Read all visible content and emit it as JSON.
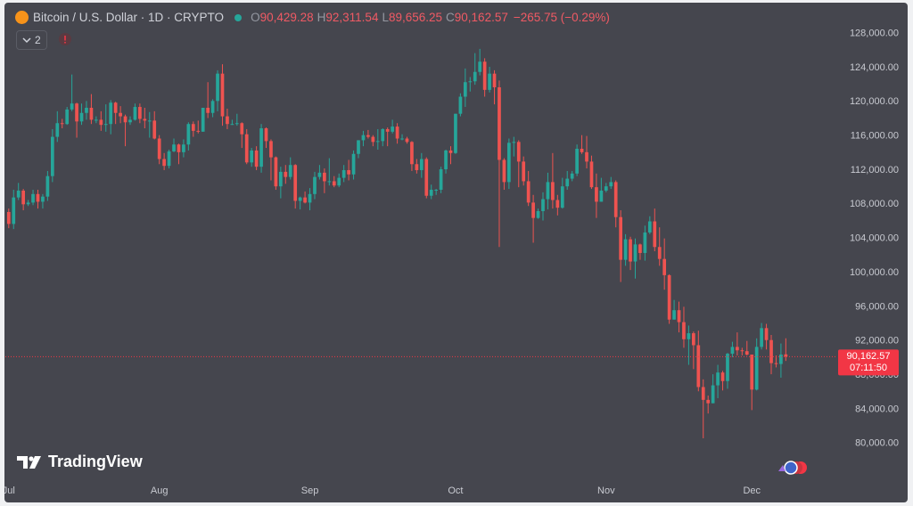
{
  "header": {
    "symbol": "Bitcoin / U.S. Dollar · 1D · CRYPTO",
    "ohlc": [
      {
        "key": "O",
        "value": "90,429.28"
      },
      {
        "key": "H",
        "value": "92,311.54"
      },
      {
        "key": "L",
        "value": "89,656.25"
      },
      {
        "key": "C",
        "value": "90,162.57"
      }
    ],
    "change": "−265.75 (−0.29%)",
    "indicators": "2"
  },
  "watermark": "TradingView",
  "chart_data": {
    "type": "candlestick",
    "x": [
      0,
      1,
      2,
      3,
      4,
      5,
      6,
      7,
      8,
      9,
      10,
      11,
      12,
      13,
      14,
      15,
      16,
      17,
      18,
      19,
      20,
      21,
      22,
      23,
      24,
      25,
      26,
      27,
      28,
      29,
      30,
      31,
      32,
      33,
      34,
      35,
      36,
      37,
      38,
      39,
      40,
      41,
      42,
      43,
      44,
      45,
      46,
      47,
      48,
      49,
      50,
      51,
      52,
      53,
      54,
      55,
      56,
      57,
      58,
      59,
      60,
      61,
      62,
      63,
      64,
      65,
      66,
      67,
      68,
      69,
      70,
      71,
      72,
      73,
      74,
      75,
      76,
      77,
      78,
      79,
      80,
      81,
      82,
      83,
      84,
      85,
      86,
      87,
      88,
      89,
      90,
      91,
      92,
      93,
      94,
      95,
      96,
      97,
      98,
      99,
      100,
      101,
      102,
      103,
      104,
      105,
      106,
      107,
      108,
      109,
      110,
      111,
      112,
      113,
      114,
      115,
      116,
      117,
      118,
      119,
      120,
      121,
      122,
      123,
      124,
      125,
      126,
      127,
      128,
      129,
      130,
      131,
      132,
      133,
      134,
      135,
      136,
      137,
      138,
      139,
      140,
      141,
      142,
      143,
      144,
      145,
      146,
      147,
      148,
      149,
      150,
      151,
      152,
      153,
      154,
      155,
      156,
      157,
      158,
      159,
      160
    ],
    "open": [
      107100,
      105700,
      108800,
      109600,
      108000,
      108200,
      109200,
      108300,
      108900,
      111300,
      115900,
      117500,
      117400,
      119100,
      119800,
      117700,
      118700,
      119300,
      117900,
      117900,
      117300,
      117400,
      119900,
      118700,
      118300,
      117600,
      117900,
      119400,
      118000,
      117800,
      117800,
      115700,
      113300,
      112500,
      114200,
      115000,
      114100,
      115000,
      117400,
      116600,
      116500,
      119300,
      118700,
      120100,
      123300,
      118300,
      117400,
      117400,
      117500,
      116200,
      112900,
      114300,
      112400,
      116900,
      115400,
      113500,
      110100,
      111800,
      111200,
      112600,
      108400,
      108800,
      108200,
      109200,
      111200,
      111700,
      110700,
      110700,
      110200,
      111100,
      112000,
      111500,
      113900,
      115500,
      116100,
      115900,
      115300,
      115400,
      116800,
      116500,
      117100,
      115700,
      115700,
      115300,
      112700,
      112000,
      113300,
      109000,
      109700,
      109700,
      112100,
      114300,
      114000,
      118600,
      120600,
      122300,
      122400,
      123500,
      124700,
      121400,
      123300,
      121700,
      113200,
      110600,
      115200,
      115300,
      113000,
      110700,
      108200,
      106400,
      107200,
      108600,
      110600,
      108500,
      107600,
      110100,
      111000,
      111600,
      114500,
      114100,
      113000,
      110000,
      108300,
      109600,
      110100,
      110600,
      106500,
      101500,
      103900,
      101300,
      103300,
      102300,
      104700,
      106000,
      103000,
      101600,
      99700,
      94500,
      95600,
      94200,
      92200,
      92900,
      91500,
      86600,
      85100,
      84700,
      86800,
      88300,
      87300,
      90500,
      91300,
      90900,
      90800,
      90400,
      86300,
      91300,
      93500,
      92100,
      89400,
      89300,
      90429.28
    ],
    "high": [
      107500,
      109700,
      110500,
      109800,
      108500,
      109700,
      109700,
      109200,
      111900,
      116800,
      118900,
      118000,
      119400,
      123200,
      119900,
      119800,
      120100,
      120900,
      118300,
      118900,
      119700,
      120200,
      120000,
      119500,
      118500,
      118300,
      119800,
      119800,
      119300,
      118800,
      118900,
      116100,
      114000,
      114400,
      115700,
      115100,
      115600,
      117600,
      117700,
      117800,
      119300,
      122300,
      120300,
      123700,
      124400,
      119200,
      117900,
      118600,
      117600,
      116800,
      114600,
      114800,
      117400,
      117000,
      115600,
      113600,
      112400,
      112600,
      113500,
      112700,
      108900,
      109500,
      109900,
      111800,
      112600,
      112200,
      113400,
      111300,
      111600,
      112600,
      113200,
      114300,
      115500,
      116600,
      116700,
      116100,
      116800,
      116900,
      117000,
      117900,
      117500,
      116200,
      115900,
      115400,
      113300,
      114000,
      113500,
      110300,
      109800,
      112400,
      114400,
      114800,
      118600,
      121000,
      123900,
      122900,
      125700,
      126200,
      125100,
      124100,
      123700,
      122500,
      113400,
      115700,
      115900,
      115500,
      113600,
      111900,
      109100,
      107500,
      109400,
      111700,
      114000,
      109100,
      111100,
      111900,
      111900,
      115000,
      116100,
      116000,
      113700,
      111600,
      111100,
      110500,
      111200,
      110800,
      107300,
      104500,
      104200,
      104000,
      103400,
      105500,
      106600,
      107500,
      105300,
      104000,
      99800,
      96800,
      96600,
      96000,
      93800,
      93100,
      93200,
      87500,
      85600,
      88100,
      89200,
      88500,
      90600,
      91900,
      93000,
      91200,
      92000,
      90400,
      92300,
      94100,
      94000,
      92700,
      90300,
      91700,
      92311.54
    ],
    "low": [
      105200,
      105100,
      108500,
      107300,
      107800,
      107900,
      107500,
      107500,
      108400,
      110600,
      115300,
      116900,
      117300,
      118900,
      115800,
      117300,
      117900,
      117400,
      117500,
      116600,
      116500,
      116200,
      117400,
      117500,
      114800,
      117300,
      117800,
      117500,
      116900,
      115800,
      115600,
      112700,
      112000,
      112200,
      114100,
      112700,
      113500,
      114300,
      115900,
      116300,
      116500,
      118100,
      118200,
      118900,
      117200,
      116800,
      117300,
      117200,
      114600,
      112700,
      112400,
      112000,
      111700,
      114600,
      110800,
      109700,
      108700,
      110400,
      110900,
      107500,
      107400,
      108100,
      107300,
      108600,
      110900,
      109300,
      110200,
      110000,
      110000,
      110600,
      110800,
      110900,
      113400,
      114800,
      115700,
      114800,
      114400,
      114800,
      114800,
      116300,
      115100,
      115500,
      115100,
      111900,
      111600,
      111100,
      108700,
      108600,
      109100,
      109300,
      111600,
      112700,
      113900,
      118300,
      119400,
      121200,
      122000,
      123100,
      120600,
      121100,
      119700,
      103000,
      109700,
      109800,
      113600,
      110000,
      110200,
      107800,
      103500,
      106300,
      106100,
      107400,
      107500,
      106700,
      107500,
      109700,
      110700,
      111300,
      113900,
      112200,
      109800,
      106400,
      108300,
      109400,
      109800,
      105300,
      98900,
      100800,
      100300,
      99300,
      101500,
      101400,
      104500,
      102500,
      100800,
      98000,
      94000,
      94500,
      93000,
      91200,
      89200,
      88700,
      86100,
      80600,
      83500,
      84700,
      85300,
      86200,
      86400,
      90100,
      90300,
      90300,
      90300,
      83900,
      86200,
      91000,
      91000,
      88100,
      88900,
      87700,
      89656.25
    ],
    "close": [
      105700,
      108800,
      109600,
      108000,
      108200,
      109200,
      108300,
      108900,
      111300,
      115900,
      117500,
      117400,
      119100,
      119800,
      117700,
      118700,
      119300,
      117900,
      117900,
      117300,
      117400,
      119900,
      118700,
      118300,
      117600,
      117900,
      119400,
      118000,
      117800,
      117800,
      115700,
      113300,
      112500,
      114200,
      115000,
      114100,
      115000,
      117400,
      116600,
      116500,
      119300,
      118700,
      120100,
      123300,
      118300,
      117400,
      117400,
      117500,
      116200,
      112900,
      114300,
      112400,
      116900,
      115400,
      113500,
      110100,
      111800,
      111200,
      112600,
      108400,
      108800,
      108200,
      109200,
      111200,
      111700,
      110700,
      110700,
      110200,
      111100,
      112000,
      111500,
      113900,
      115500,
      116100,
      115900,
      115300,
      115400,
      116800,
      116500,
      117100,
      115700,
      115700,
      115300,
      112700,
      112000,
      113300,
      109000,
      109700,
      109700,
      112100,
      114300,
      114000,
      118600,
      120600,
      122300,
      122400,
      123500,
      124700,
      121400,
      123300,
      121700,
      113200,
      110600,
      115200,
      115300,
      113000,
      110700,
      108200,
      106400,
      107200,
      108600,
      110600,
      108500,
      107600,
      110100,
      111000,
      111600,
      114500,
      114100,
      113000,
      110000,
      108300,
      109600,
      110100,
      110600,
      106500,
      101500,
      103900,
      101300,
      103300,
      102300,
      104700,
      106000,
      103000,
      101600,
      99700,
      94500,
      95600,
      94200,
      92200,
      92900,
      91500,
      86600,
      85100,
      84700,
      86800,
      88300,
      87300,
      90500,
      91300,
      90900,
      90800,
      90400,
      86300,
      91300,
      93500,
      92100,
      89400,
      89300,
      90400,
      90162.57
    ],
    "up_color": "#26a69a",
    "down_color": "#ef5350",
    "last_price": {
      "value": 90162.57,
      "label": "90,162.57"
    },
    "countdown": "07:11:50",
    "last_price_color": "#f23645",
    "xlim": [
      -0.7,
      170.4
    ],
    "xticks": [
      {
        "value": 0,
        "label": "Jul"
      },
      {
        "value": 31,
        "label": "Aug"
      },
      {
        "value": 62,
        "label": "Sep"
      },
      {
        "value": 92,
        "label": "Oct"
      },
      {
        "value": 123,
        "label": "Nov"
      },
      {
        "value": 153,
        "label": "Dec"
      }
    ],
    "ylim": [
      75800,
      131400
    ],
    "yticks": [
      {
        "value": 80000,
        "label": "80,000.00"
      },
      {
        "value": 84000,
        "label": "84,000.00"
      },
      {
        "value": 88000,
        "label": "88,000.00"
      },
      {
        "value": 92000,
        "label": "92,000.00"
      },
      {
        "value": 96000,
        "label": "96,000.00"
      },
      {
        "value": 100000,
        "label": "100,000.00"
      },
      {
        "value": 104000,
        "label": "104,000.00"
      },
      {
        "value": 108000,
        "label": "108,000.00"
      },
      {
        "value": 112000,
        "label": "112,000.00"
      },
      {
        "value": 116000,
        "label": "116,000.00"
      },
      {
        "value": 120000,
        "label": "120,000.00"
      },
      {
        "value": 124000,
        "label": "124,000.00"
      },
      {
        "value": 128000,
        "label": "128,000.00"
      }
    ],
    "grid": false
  }
}
